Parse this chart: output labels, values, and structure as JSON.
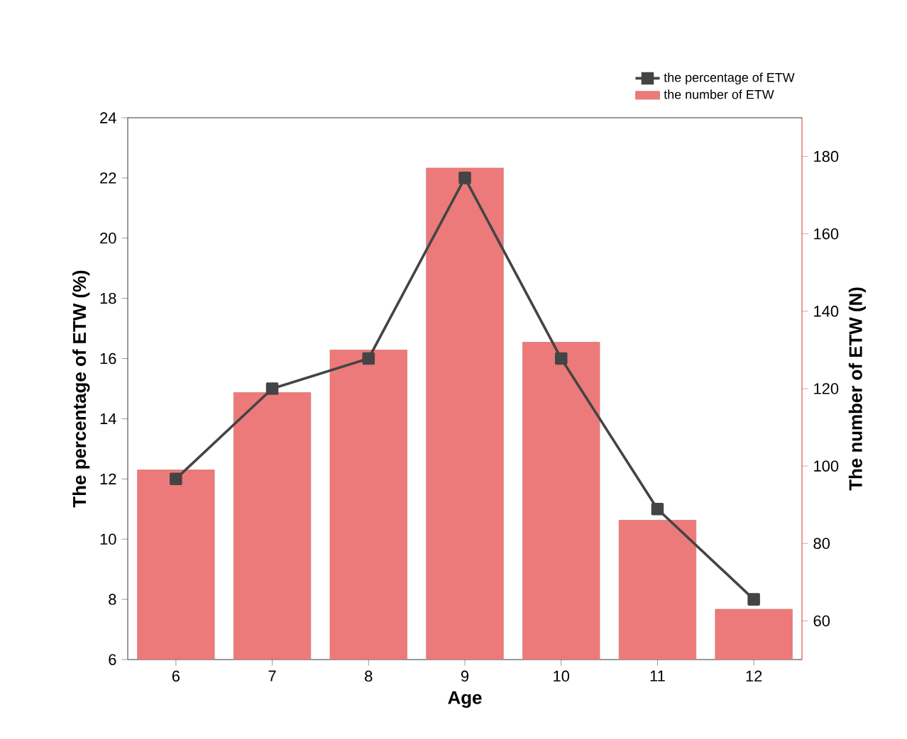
{
  "chart_data": {
    "type": "bar",
    "categories": [
      "6",
      "7",
      "8",
      "9",
      "10",
      "11",
      "12"
    ],
    "series": [
      {
        "name": "the number of ETW",
        "axis": "y2",
        "color": "#ec7a7a",
        "values": [
          99,
          119,
          130,
          177,
          132,
          86,
          63
        ]
      },
      {
        "name": "the percentage of ETW",
        "type": "line",
        "color": "#444444",
        "marker": "square",
        "values": [
          12,
          15,
          16,
          22,
          16,
          11,
          8
        ]
      }
    ],
    "xlabel": "Age",
    "ylabel": "The percentage of ETW (%)",
    "y2label": "The number of ETW (N)",
    "ylim": [
      6,
      24
    ],
    "yticks": [
      6,
      8,
      10,
      12,
      14,
      16,
      18,
      20,
      22,
      24
    ],
    "y2lim": [
      50,
      190
    ],
    "y2ticks": [
      60,
      80,
      100,
      120,
      140,
      160,
      180
    ],
    "legend": "top right"
  }
}
